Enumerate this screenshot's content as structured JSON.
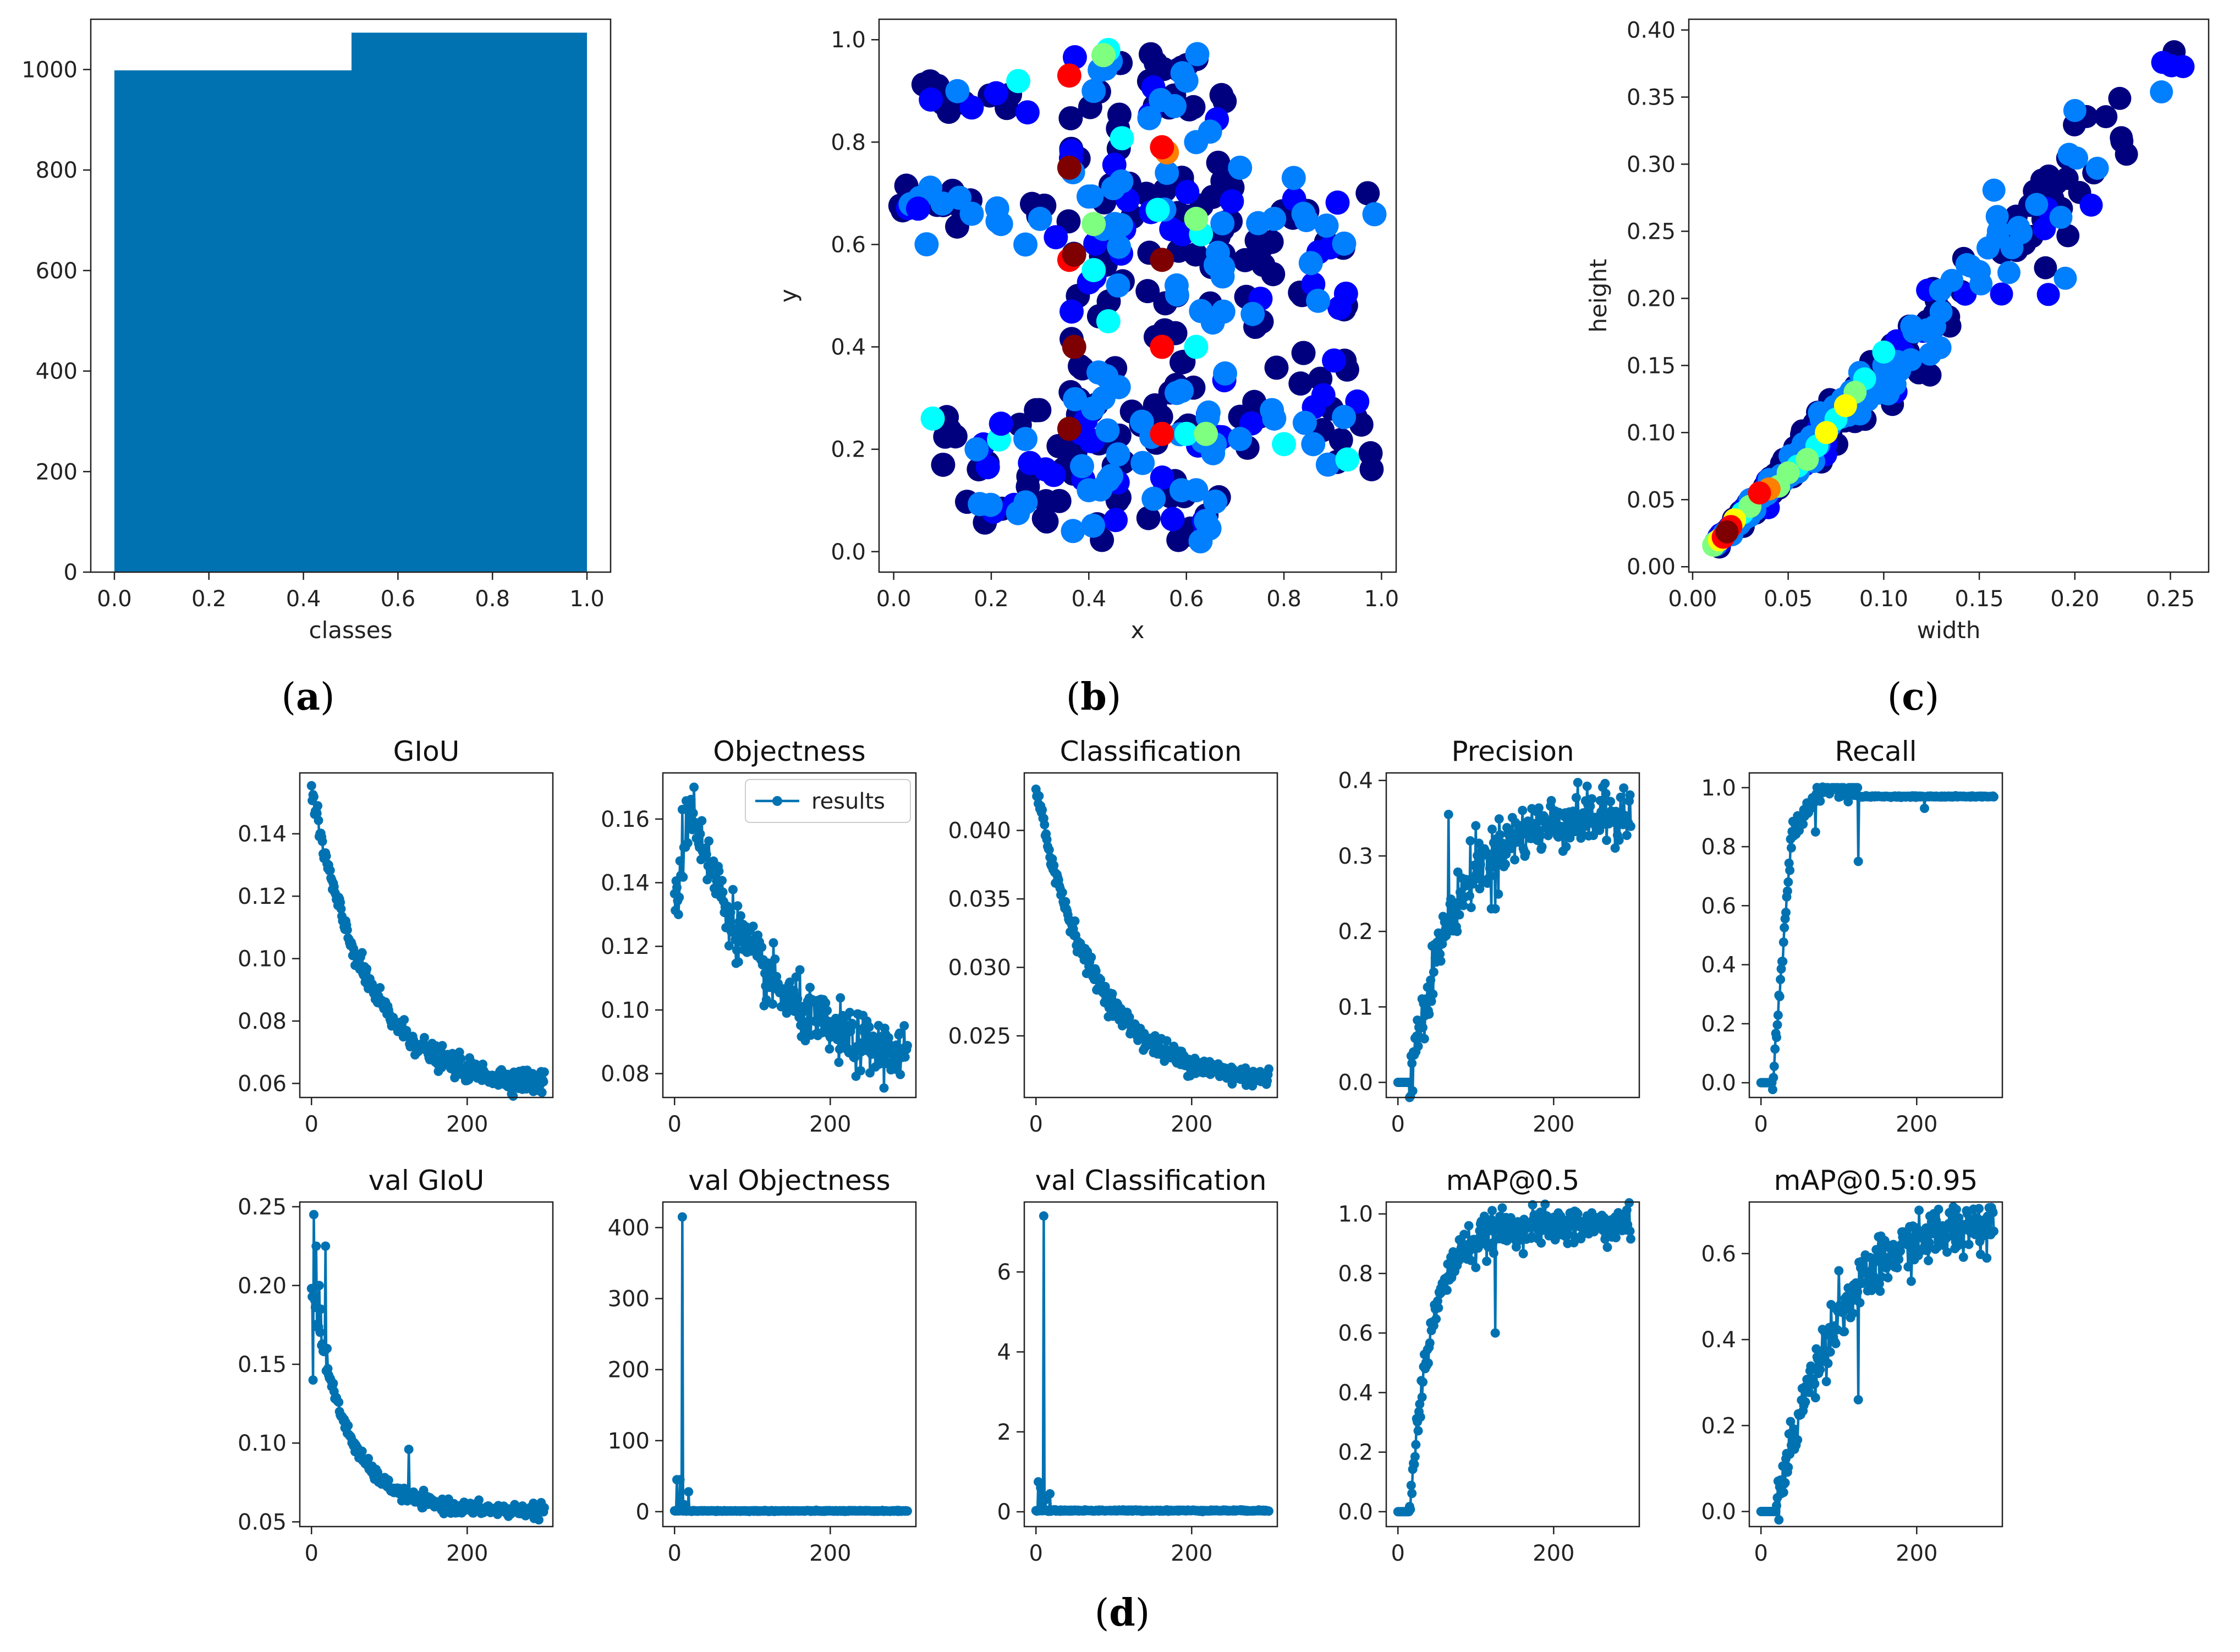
{
  "colors": {
    "series": "#0072B2",
    "axis": "#222222",
    "jet_scale": [
      "#00007f",
      "#0000ff",
      "#007fff",
      "#00ffff",
      "#7fff7f",
      "#ffff00",
      "#ff7f00",
      "#ff0000",
      "#7f0000"
    ]
  },
  "captions": {
    "a": "a",
    "b": "b",
    "c": "c",
    "d": "d"
  },
  "chart_data": [
    {
      "id": "a",
      "type": "bar",
      "title": "",
      "xlabel": "classes",
      "ylabel": "",
      "xlim": [
        -0.05,
        1.05
      ],
      "ylim": [
        0,
        1100
      ],
      "xticks": [
        0.0,
        0.2,
        0.4,
        0.6,
        0.8,
        1.0
      ],
      "xtick_labels": [
        "0.0",
        "0.2",
        "0.4",
        "0.6",
        "0.8",
        "1.0"
      ],
      "yticks": [
        0,
        200,
        400,
        600,
        800,
        1000
      ],
      "ytick_labels": [
        "0",
        "200",
        "400",
        "600",
        "800",
        "1000"
      ],
      "bins": [
        {
          "x0": 0.0,
          "x1": 0.5,
          "value": 1000
        },
        {
          "x0": 0.5,
          "x1": 1.0,
          "value": 1075
        }
      ]
    },
    {
      "id": "b",
      "type": "scatter",
      "title": "",
      "xlabel": "x",
      "ylabel": "y",
      "xlim": [
        -0.03,
        1.03
      ],
      "ylim": [
        -0.04,
        1.04
      ],
      "xticks": [
        0.0,
        0.2,
        0.4,
        0.6,
        0.8,
        1.0
      ],
      "xtick_labels": [
        "0.0",
        "0.2",
        "0.4",
        "0.6",
        "0.8",
        "1.0"
      ],
      "yticks": [
        0.0,
        0.2,
        0.4,
        0.6,
        0.8,
        1.0
      ],
      "ytick_labels": [
        "0.0",
        "0.2",
        "0.4",
        "0.6",
        "0.8",
        "1.0"
      ],
      "points_xyd": [
        [
          0.36,
          0.93,
          0.85
        ],
        [
          0.43,
          0.97,
          0.45
        ],
        [
          0.44,
          0.98,
          0.4
        ],
        [
          0.55,
          0.79,
          0.88
        ],
        [
          0.56,
          0.78,
          0.8
        ],
        [
          0.36,
          0.75,
          0.97
        ],
        [
          0.37,
          0.58,
          0.95
        ],
        [
          0.36,
          0.57,
          0.9
        ],
        [
          0.55,
          0.57,
          1.0
        ],
        [
          0.37,
          0.4,
          0.97
        ],
        [
          0.55,
          0.4,
          0.9
        ],
        [
          0.36,
          0.24,
          0.97
        ],
        [
          0.55,
          0.23,
          0.85
        ],
        [
          0.41,
          0.64,
          0.45
        ],
        [
          0.44,
          0.45,
          0.4
        ],
        [
          0.62,
          0.65,
          0.5
        ],
        [
          0.64,
          0.23,
          0.45
        ],
        [
          0.6,
          0.23,
          0.4
        ],
        [
          0.41,
          0.55,
          0.35
        ],
        [
          0.62,
          0.4,
          0.35
        ],
        [
          0.43,
          0.3,
          0.3
        ],
        [
          0.08,
          0.26,
          0.35
        ],
        [
          0.93,
          0.18,
          0.35
        ],
        [
          0.89,
          0.17,
          0.3
        ],
        [
          0.82,
          0.73,
          0.3
        ],
        [
          0.87,
          0.49,
          0.3
        ],
        [
          0.8,
          0.21,
          0.32
        ],
        [
          0.62,
          0.12,
          0.3
        ],
        [
          0.44,
          0.14,
          0.3
        ],
        [
          0.64,
          0.06,
          0.28
        ],
        [
          0.63,
          0.62,
          0.35
        ],
        [
          0.66,
          0.56,
          0.3
        ],
        [
          0.41,
          0.9,
          0.25
        ],
        [
          0.6,
          0.92,
          0.25
        ],
        [
          0.84,
          0.66,
          0.25
        ],
        [
          0.78,
          0.65,
          0.25
        ],
        [
          0.3,
          0.65,
          0.2
        ],
        [
          0.22,
          0.64,
          0.2
        ],
        [
          0.16,
          0.66,
          0.2
        ],
        [
          0.1,
          0.68,
          0.2
        ],
        [
          0.05,
          0.67,
          0.18
        ],
        [
          0.17,
          0.2,
          0.2
        ],
        [
          0.22,
          0.25,
          0.18
        ],
        [
          0.27,
          0.22,
          0.2
        ],
        [
          0.78,
          0.26,
          0.22
        ],
        [
          0.71,
          0.22,
          0.2
        ],
        [
          0.86,
          0.21,
          0.2
        ],
        [
          0.58,
          0.52,
          0.2
        ],
        [
          0.46,
          0.52,
          0.22
        ],
        [
          0.45,
          0.71,
          0.25
        ],
        [
          0.56,
          0.74,
          0.22
        ],
        [
          0.62,
          0.8,
          0.2
        ],
        [
          0.42,
          0.35,
          0.22
        ],
        [
          0.58,
          0.31,
          0.2
        ],
        [
          0.4,
          0.12,
          0.2
        ],
        [
          0.59,
          0.12,
          0.2
        ],
        [
          0.46,
          0.19,
          0.2
        ],
        [
          0.63,
          0.47,
          0.22
        ],
        [
          0.71,
          0.75,
          0.2
        ],
        [
          0.27,
          0.6,
          0.2
        ]
      ]
    },
    {
      "id": "c",
      "type": "scatter",
      "title": "",
      "xlabel": "width",
      "ylabel": "height",
      "xlim": [
        -0.002,
        0.27
      ],
      "ylim": [
        -0.004,
        0.408
      ],
      "xticks": [
        0.0,
        0.05,
        0.1,
        0.15,
        0.2,
        0.25
      ],
      "xtick_labels": [
        "0.00",
        "0.05",
        "0.10",
        "0.15",
        "0.20",
        "0.25"
      ],
      "yticks": [
        0.0,
        0.05,
        0.1,
        0.15,
        0.2,
        0.25,
        0.3,
        0.35,
        0.4
      ],
      "ytick_labels": [
        "0.00",
        "0.05",
        "0.10",
        "0.15",
        "0.20",
        "0.25",
        "0.30",
        "0.35",
        "0.40"
      ],
      "points_xyd": [
        [
          0.018,
          0.026,
          0.97
        ],
        [
          0.02,
          0.03,
          0.92
        ],
        [
          0.016,
          0.022,
          0.85
        ],
        [
          0.035,
          0.055,
          0.82
        ],
        [
          0.04,
          0.058,
          0.75
        ],
        [
          0.014,
          0.02,
          0.65
        ],
        [
          0.022,
          0.035,
          0.6
        ],
        [
          0.03,
          0.045,
          0.55
        ],
        [
          0.045,
          0.06,
          0.45
        ],
        [
          0.05,
          0.07,
          0.5
        ],
        [
          0.06,
          0.08,
          0.55
        ],
        [
          0.07,
          0.1,
          0.6
        ],
        [
          0.08,
          0.12,
          0.58
        ],
        [
          0.085,
          0.13,
          0.45
        ],
        [
          0.1,
          0.16,
          0.4
        ],
        [
          0.09,
          0.14,
          0.35
        ],
        [
          0.075,
          0.11,
          0.4
        ],
        [
          0.065,
          0.09,
          0.42
        ],
        [
          0.055,
          0.075,
          0.35
        ],
        [
          0.026,
          0.04,
          0.4
        ],
        [
          0.012,
          0.018,
          0.55
        ],
        [
          0.03,
          0.05,
          0.3
        ],
        [
          0.1,
          0.15,
          0.3
        ],
        [
          0.055,
          0.085,
          0.3
        ],
        [
          0.13,
          0.19,
          0.25
        ],
        [
          0.15,
          0.22,
          0.25
        ],
        [
          0.18,
          0.27,
          0.25
        ],
        [
          0.2,
          0.34,
          0.22
        ],
        [
          0.195,
          0.215,
          0.25
        ],
        [
          0.16,
          0.25,
          0.22
        ],
        [
          0.04,
          0.065,
          0.3
        ],
        [
          0.011,
          0.016,
          0.5
        ]
      ]
    },
    {
      "id": "d1",
      "type": "line",
      "title": "GIoU",
      "xlabel": "",
      "ylabel": "",
      "xlim": [
        -15,
        310
      ],
      "ylim": [
        0.0555,
        0.1595
      ],
      "xticks": [
        0,
        200
      ],
      "xtick_labels": [
        "0",
        "200"
      ],
      "yticks": [
        0.06,
        0.08,
        0.1,
        0.12,
        0.14
      ],
      "ytick_labels": [
        "0.06",
        "0.08",
        "0.10",
        "0.12",
        "0.14"
      ],
      "series": [
        {
          "name": "results",
          "model": {
            "kind": "decay",
            "y0": 0.154,
            "yinf": 0.059,
            "tau": 70,
            "noise": 0.0018,
            "spikes": []
          }
        }
      ]
    },
    {
      "id": "d2",
      "type": "line",
      "title": "Objectness",
      "xlabel": "",
      "ylabel": "",
      "xlim": [
        -15,
        310
      ],
      "ylim": [
        0.0725,
        0.1745
      ],
      "xticks": [
        0,
        200
      ],
      "xtick_labels": [
        "0",
        "200"
      ],
      "yticks": [
        0.08,
        0.1,
        0.12,
        0.14,
        0.16
      ],
      "ytick_labels": [
        "0.08",
        "0.10",
        "0.12",
        "0.14",
        "0.16"
      ],
      "legend": {
        "label": "results",
        "loc": "upper right"
      },
      "series": [
        {
          "name": "results",
          "model": {
            "kind": "rise-decay",
            "y0": 0.13,
            "peak": 0.165,
            "peak_at": 20,
            "yinf": 0.081,
            "tau": 95,
            "noise": 0.0045,
            "spikes": [
              [
                5,
                0.13
              ],
              [
                10,
                0.163
              ],
              [
                25,
                0.17
              ]
            ]
          }
        }
      ]
    },
    {
      "id": "d3",
      "type": "line",
      "title": "Classification",
      "xlabel": "",
      "ylabel": "",
      "xlim": [
        -15,
        310
      ],
      "ylim": [
        0.0205,
        0.0442
      ],
      "xticks": [
        0,
        200
      ],
      "xtick_labels": [
        "0",
        "200"
      ],
      "yticks": [
        0.025,
        0.03,
        0.035,
        0.04
      ],
      "ytick_labels": [
        "0.025",
        "0.030",
        "0.035",
        "0.040"
      ],
      "series": [
        {
          "name": "results",
          "model": {
            "kind": "decay",
            "y0": 0.043,
            "yinf": 0.0215,
            "tau": 75,
            "noise": 0.0004,
            "spikes": []
          }
        }
      ]
    },
    {
      "id": "d4",
      "type": "line",
      "title": "Precision",
      "xlabel": "",
      "ylabel": "",
      "xlim": [
        -15,
        310
      ],
      "ylim": [
        -0.02,
        0.41
      ],
      "xticks": [
        0,
        200
      ],
      "xtick_labels": [
        "0",
        "200"
      ],
      "yticks": [
        0.0,
        0.1,
        0.2,
        0.3,
        0.4
      ],
      "ytick_labels": [
        "0.0",
        "0.1",
        "0.2",
        "0.3",
        "0.4"
      ],
      "series": [
        {
          "name": "results",
          "model": {
            "kind": "growth",
            "delay": 15,
            "ymax": 0.355,
            "tau": 55,
            "noise": 0.018,
            "spikes": [
              [
                65,
                0.355
              ],
              [
                70,
                0.21
              ],
              [
                100,
                0.34
              ],
              [
                120,
                0.23
              ],
              [
                125,
                0.23
              ],
              [
                290,
                0.39
              ]
            ]
          }
        }
      ]
    },
    {
      "id": "d5",
      "type": "line",
      "title": "Recall",
      "xlabel": "",
      "ylabel": "",
      "xlim": [
        -15,
        310
      ],
      "ylim": [
        -0.05,
        1.05
      ],
      "xticks": [
        0,
        200
      ],
      "xtick_labels": [
        "0",
        "200"
      ],
      "yticks": [
        0.0,
        0.2,
        0.4,
        0.6,
        0.8,
        1.0
      ],
      "ytick_labels": [
        "0.0",
        "0.2",
        "0.4",
        "0.6",
        "0.8",
        "1.0"
      ],
      "series": [
        {
          "name": "results",
          "model": {
            "kind": "recall",
            "delay": 15,
            "plateau": 0.97,
            "top": 1.0,
            "noise": 0.02,
            "spikes": [
              [
                125,
                0.75
              ],
              [
                70,
                0.85
              ],
              [
                210,
                0.93
              ]
            ]
          }
        }
      ]
    },
    {
      "id": "d6",
      "type": "line",
      "title": "val GIoU",
      "xlabel": "",
      "ylabel": "",
      "xlim": [
        -15,
        310
      ],
      "ylim": [
        0.047,
        0.253
      ],
      "xticks": [
        0,
        200
      ],
      "xtick_labels": [
        "0",
        "200"
      ],
      "yticks": [
        0.05,
        0.1,
        0.15,
        0.2,
        0.25
      ],
      "ytick_labels": [
        "0.05",
        "0.10",
        "0.15",
        "0.20",
        "0.25"
      ],
      "series": [
        {
          "name": "results",
          "model": {
            "kind": "decay",
            "y0": 0.2,
            "yinf": 0.057,
            "tau": 45,
            "noise": 0.002,
            "spikes": [
              [
                2,
                0.14
              ],
              [
                3,
                0.245
              ],
              [
                6,
                0.225
              ],
              [
                10,
                0.2
              ],
              [
                12,
                0.185
              ],
              [
                18,
                0.225
              ],
              [
                20,
                0.16
              ],
              [
                125,
                0.096
              ]
            ]
          }
        }
      ]
    },
    {
      "id": "d7",
      "type": "line",
      "title": "val Objectness",
      "xlabel": "",
      "ylabel": "",
      "xlim": [
        -15,
        310
      ],
      "ylim": [
        -21,
        436
      ],
      "xticks": [
        0,
        200
      ],
      "xtick_labels": [
        "0",
        "200"
      ],
      "yticks": [
        0,
        100,
        200,
        300,
        400
      ],
      "ytick_labels": [
        "0",
        "100",
        "200",
        "300",
        "400"
      ],
      "series": [
        {
          "name": "results",
          "model": {
            "kind": "flat",
            "level": 1.0,
            "noise": 0.3,
            "spikes": [
              [
                3,
                45
              ],
              [
                7,
                45
              ],
              [
                10,
                415
              ],
              [
                12,
                10
              ],
              [
                18,
                28
              ]
            ]
          }
        }
      ]
    },
    {
      "id": "d8",
      "type": "line",
      "title": "val Classification",
      "xlabel": "",
      "ylabel": "",
      "xlim": [
        -15,
        310
      ],
      "ylim": [
        -0.37,
        7.75
      ],
      "xticks": [
        0,
        200
      ],
      "xtick_labels": [
        "0",
        "200"
      ],
      "yticks": [
        0,
        2,
        4,
        6
      ],
      "ytick_labels": [
        "0",
        "2",
        "4",
        "6"
      ],
      "series": [
        {
          "name": "results",
          "model": {
            "kind": "flat",
            "level": 0.03,
            "noise": 0.008,
            "spikes": [
              [
                3,
                0.75
              ],
              [
                6,
                0.6
              ],
              [
                10,
                7.4
              ],
              [
                12,
                0.3
              ],
              [
                18,
                0.45
              ]
            ]
          }
        }
      ]
    },
    {
      "id": "d9",
      "type": "line",
      "title": "mAP@0.5",
      "xlabel": "",
      "ylabel": "",
      "xlim": [
        -15,
        310
      ],
      "ylim": [
        -0.05,
        1.04
      ],
      "xticks": [
        0,
        200
      ],
      "xtick_labels": [
        "0",
        "200"
      ],
      "yticks": [
        0.0,
        0.2,
        0.4,
        0.6,
        0.8,
        1.0
      ],
      "ytick_labels": [
        "0.0",
        "0.2",
        "0.4",
        "0.6",
        "0.8",
        "1.0"
      ],
      "series": [
        {
          "name": "results",
          "model": {
            "kind": "growth",
            "delay": 15,
            "ymax": 0.96,
            "tau": 28,
            "noise": 0.03,
            "spikes": [
              [
                125,
                0.6
              ],
              [
                70,
                0.8
              ],
              [
                100,
                0.82
              ]
            ]
          }
        }
      ]
    },
    {
      "id": "d10",
      "type": "line",
      "title": "mAP@0.5:0.95",
      "xlabel": "",
      "ylabel": "",
      "xlim": [
        -15,
        310
      ],
      "ylim": [
        -0.035,
        0.72
      ],
      "xticks": [
        0,
        200
      ],
      "xtick_labels": [
        "0",
        "200"
      ],
      "yticks": [
        0.0,
        0.2,
        0.4,
        0.6
      ],
      "ytick_labels": [
        "0.0",
        "0.2",
        "0.4",
        "0.6"
      ],
      "series": [
        {
          "name": "results",
          "model": {
            "kind": "growth",
            "delay": 20,
            "ymax": 0.69,
            "tau": 75,
            "noise": 0.03,
            "spikes": [
              [
                125,
                0.26
              ],
              [
                60,
                0.3
              ],
              [
                100,
                0.56
              ]
            ]
          }
        }
      ]
    }
  ]
}
